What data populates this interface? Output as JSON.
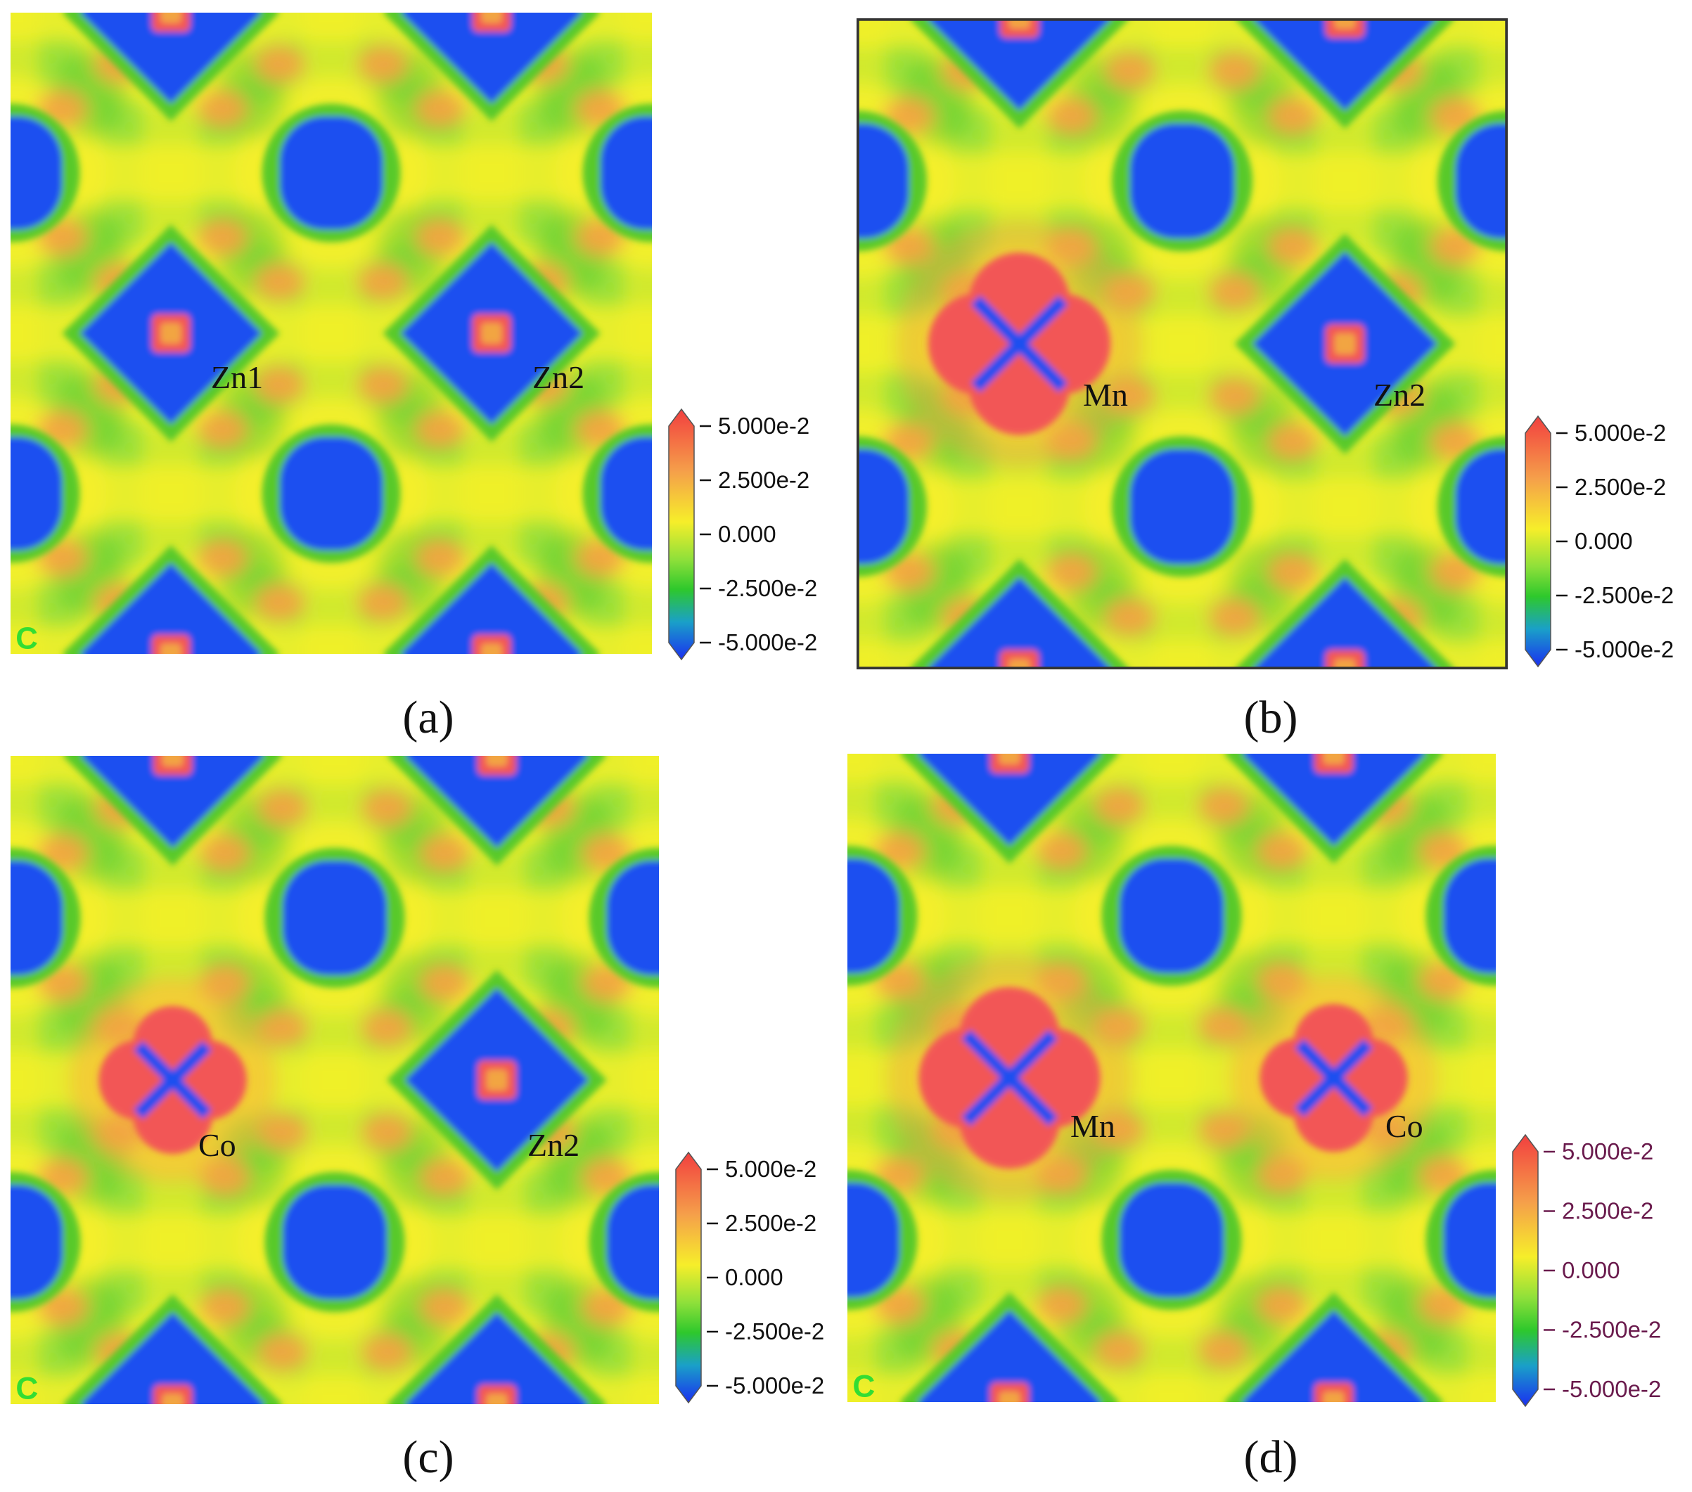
{
  "figure": {
    "colors": {
      "background_field": "#9ae03a",
      "yellow": "#f5f02a",
      "orange": "#f2a542",
      "red": "#f25757",
      "green": "#58c92c",
      "blue": "#1a4ff0"
    },
    "colorbar": {
      "ticks": [
        "5.000e-2",
        "2.500e-2",
        "0.000",
        "-2.500e-2",
        "-5.000e-2"
      ],
      "tick_color_default": "#111111",
      "tick_color_panel_d": "#6a1b4d"
    },
    "panels": [
      {
        "label": "(a)",
        "atoms": [
          "Zn1",
          "Zn2"
        ],
        "left_site": "zn",
        "right_site": "zn",
        "corner_mark": "C"
      },
      {
        "label": "(b)",
        "atoms": [
          "Mn",
          "Zn2"
        ],
        "left_site": "mn",
        "right_site": "zn",
        "corner_mark": ""
      },
      {
        "label": "(c)",
        "atoms": [
          "Co",
          "Zn2"
        ],
        "left_site": "co",
        "right_site": "zn",
        "corner_mark": "C"
      },
      {
        "label": "(d)",
        "atoms": [
          "Mn",
          "Co"
        ],
        "left_site": "mn",
        "right_site": "co",
        "corner_mark": "C"
      }
    ]
  }
}
